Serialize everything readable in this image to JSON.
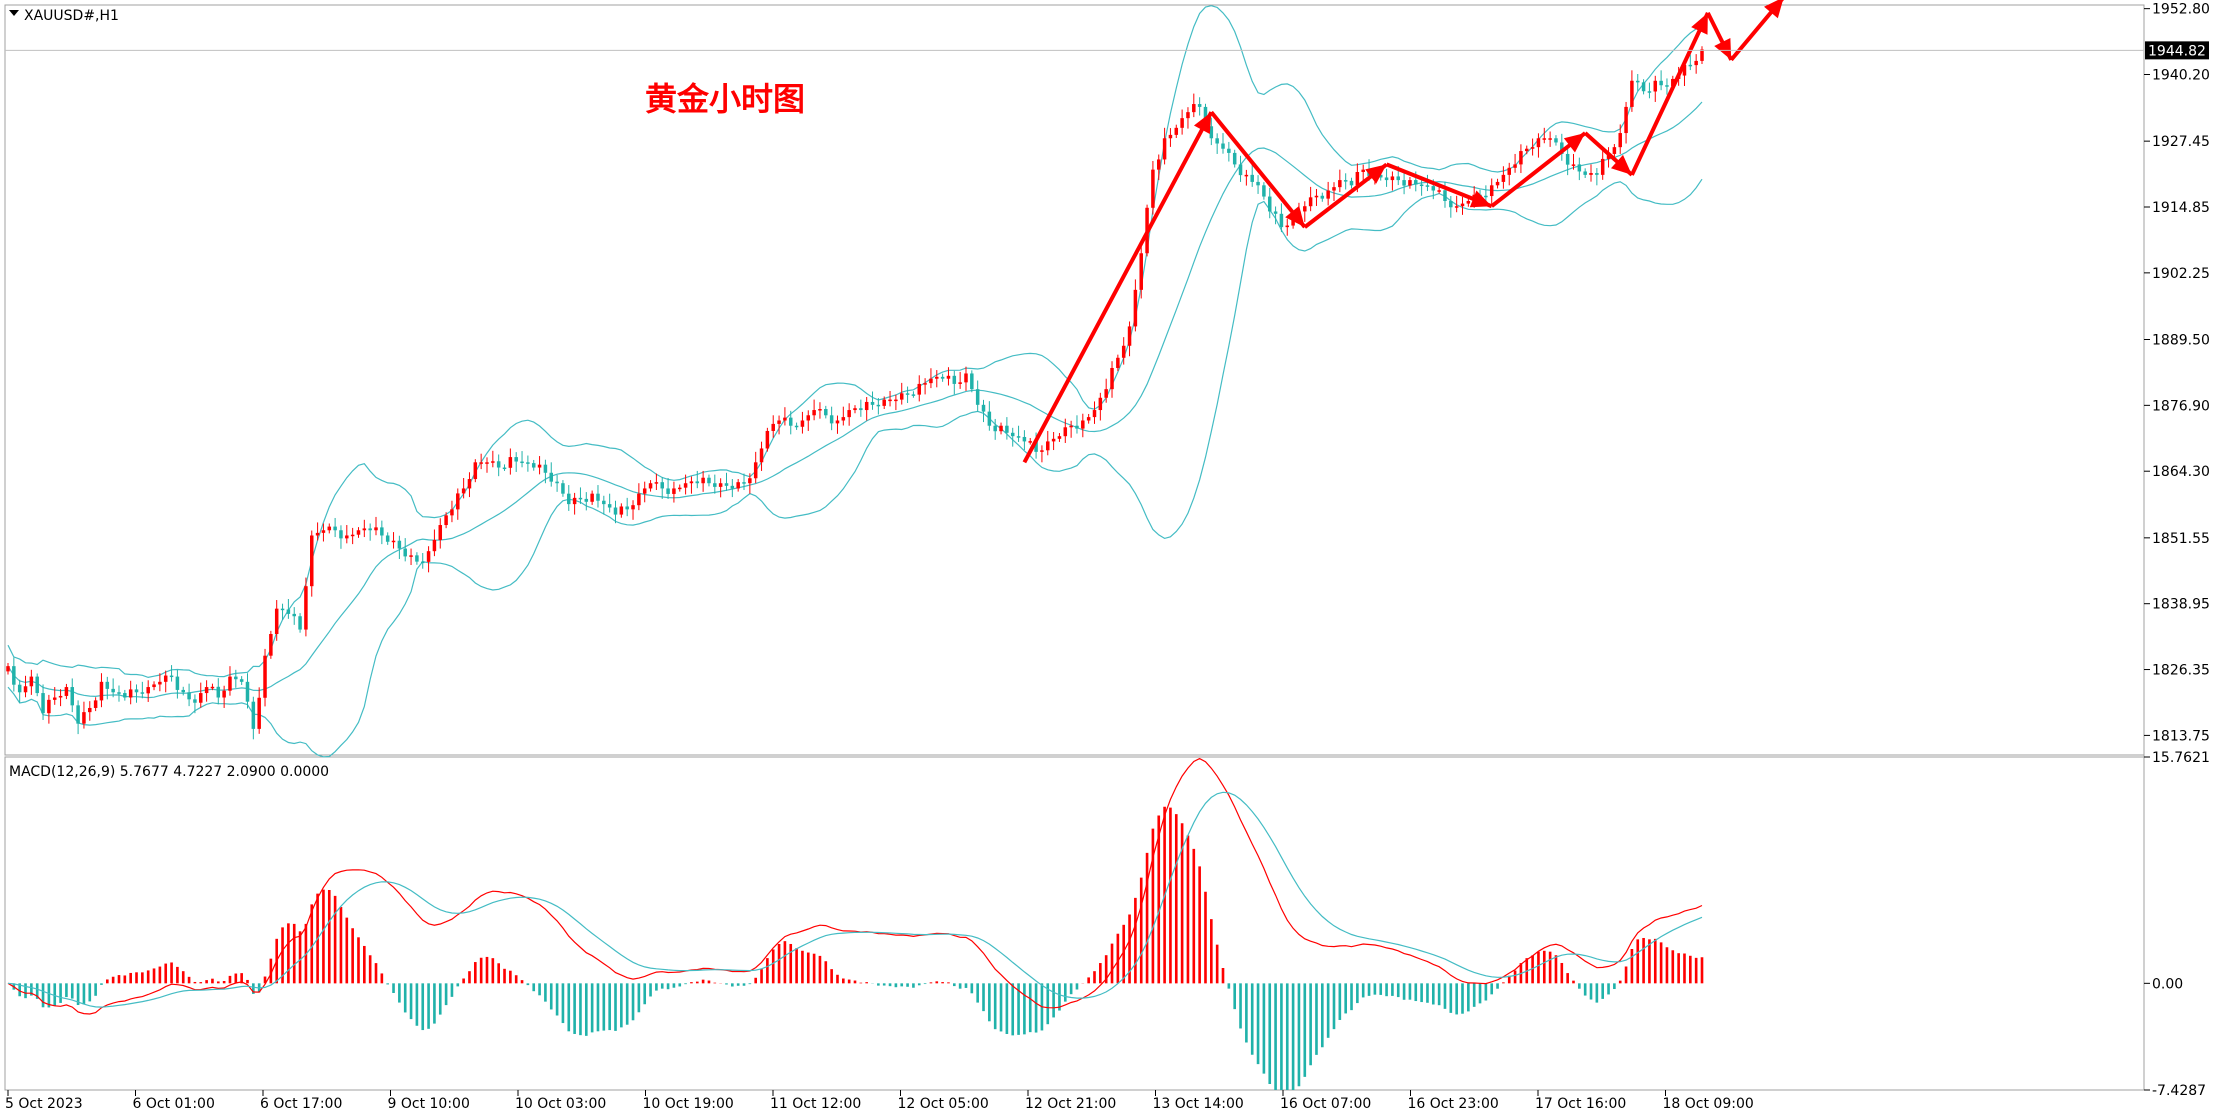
{
  "chart_data": {
    "type": "candlestick",
    "symbol_label": "XAUUSD#,H1",
    "annotation_title": "黄金小时图",
    "price_axis": {
      "ticks": [
        "1952.80",
        "1940.20",
        "1927.45",
        "1914.85",
        "1902.25",
        "1889.50",
        "1876.90",
        "1864.30",
        "1851.55",
        "1838.95",
        "1826.35",
        "1813.75"
      ],
      "range": [
        1810.0,
        1953.5
      ],
      "current_price": "1944.82"
    },
    "time_axis": {
      "ticks": [
        "5 Oct 2023",
        "6 Oct 01:00",
        "6 Oct 17:00",
        "9 Oct 10:00",
        "10 Oct 03:00",
        "10 Oct 19:00",
        "11 Oct 12:00",
        "12 Oct 05:00",
        "12 Oct 21:00",
        "13 Oct 14:00",
        "16 Oct 07:00",
        "16 Oct 23:00",
        "17 Oct 16:00",
        "18 Oct 09:00"
      ]
    },
    "close_series": [
      1827,
      1822,
      1825,
      1818,
      1821,
      1823,
      1816,
      1819,
      1824,
      1822,
      1821,
      1822,
      1823,
      1824,
      1825,
      1822,
      1820,
      1823,
      1821,
      1825,
      1824,
      1815,
      1829,
      1838,
      1837,
      1834,
      1852,
      1853,
      1853,
      1852,
      1853,
      1853,
      1852,
      1851,
      1848,
      1847,
      1849,
      1854,
      1857,
      1861,
      1866,
      1866,
      1865,
      1867,
      1866,
      1865,
      1864,
      1862,
      1858,
      1859,
      1860,
      1858,
      1856,
      1857,
      1860,
      1862,
      1861,
      1861,
      1862,
      1862,
      1862,
      1862,
      1861,
      1862,
      1866,
      1872,
      1874,
      1873,
      1874,
      1876,
      1875,
      1874,
      1876,
      1876,
      1877,
      1878,
      1878,
      1879,
      1881,
      1882,
      1882,
      1881,
      1883,
      1877,
      1873,
      1873,
      1871,
      1870,
      1868,
      1870,
      1871,
      1873,
      1874,
      1876,
      1880,
      1886,
      1892,
      1906,
      1922,
      1928,
      1930,
      1933,
      1934,
      1928,
      1926,
      1923,
      1921,
      1919,
      1914,
      1911,
      1913,
      1915,
      1917,
      1918,
      1920,
      1919,
      1922,
      1921,
      1920,
      1920,
      1920,
      1919,
      1918,
      1916,
      1915,
      1916,
      1917,
      1919,
      1921,
      1923,
      1926,
      1928,
      1928,
      1925,
      1923,
      1921,
      1921,
      1925,
      1929,
      1939,
      1937,
      1939,
      1938,
      1940,
      1942,
      1945
    ],
    "bollinger": {
      "period": 20,
      "deviations": 2
    },
    "macd": {
      "label": "MACD(12,26,9) 5.7677 4.7227 2.0900 0.0000",
      "axis_ticks": [
        "15.7621",
        "0.00",
        "-7.4287"
      ],
      "range": [
        -7.4287,
        15.7621
      ]
    },
    "annotation_arrows_color": "#ff0000",
    "colors": {
      "bull": "#ff0000",
      "bear": "#20b2aa",
      "band": "#44bcc4",
      "macd_line": "#ff0000",
      "signal_line": "#44bcc4"
    }
  }
}
